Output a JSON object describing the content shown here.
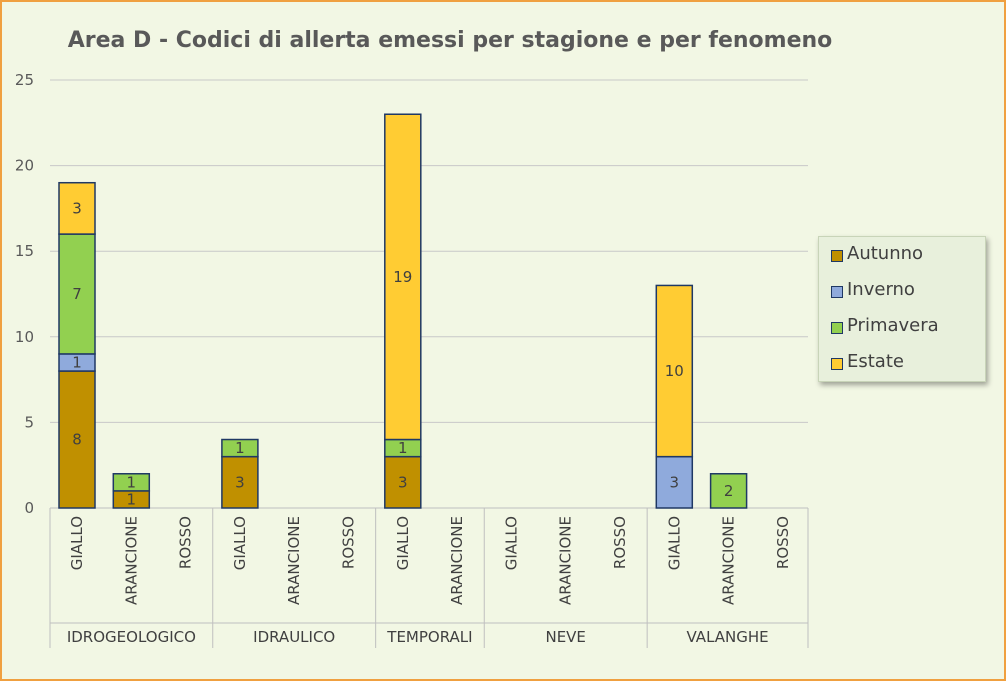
{
  "chart_data": {
    "type": "bar",
    "stacked": true,
    "title": "Area D - Codici di allerta emessi per stagione e per fenomeno",
    "ylim": [
      0,
      25
    ],
    "yticks": [
      0,
      5,
      10,
      15,
      20,
      25
    ],
    "grid": true,
    "legend_position": "right",
    "groups": [
      "IDROGEOLOGICO",
      "IDRAULICO",
      "TEMPORALI",
      "NEVE",
      "VALANGHE"
    ],
    "categories": [
      {
        "group": "IDROGEOLOGICO",
        "label": "GIALLO"
      },
      {
        "group": "IDROGEOLOGICO",
        "label": "ARANCIONE"
      },
      {
        "group": "IDROGEOLOGICO",
        "label": "ROSSO"
      },
      {
        "group": "IDRAULICO",
        "label": "GIALLO"
      },
      {
        "group": "IDRAULICO",
        "label": "ARANCIONE"
      },
      {
        "group": "IDRAULICO",
        "label": "ROSSO"
      },
      {
        "group": "TEMPORALI",
        "label": "GIALLO"
      },
      {
        "group": "TEMPORALI",
        "label": "ARANCIONE"
      },
      {
        "group": "NEVE",
        "label": "GIALLO"
      },
      {
        "group": "NEVE",
        "label": "ARANCIONE"
      },
      {
        "group": "NEVE",
        "label": "ROSSO"
      },
      {
        "group": "VALANGHE",
        "label": "GIALLO"
      },
      {
        "group": "VALANGHE",
        "label": "ARANCIONE"
      },
      {
        "group": "VALANGHE",
        "label": "ROSSO"
      }
    ],
    "series": [
      {
        "name": "Autunno",
        "color": "#c09000",
        "values": [
          8,
          1,
          0,
          3,
          0,
          0,
          3,
          0,
          0,
          0,
          0,
          0,
          0,
          0
        ]
      },
      {
        "name": "Inverno",
        "color": "#8faadc",
        "values": [
          1,
          0,
          0,
          0,
          0,
          0,
          0,
          0,
          0,
          0,
          0,
          3,
          0,
          0
        ]
      },
      {
        "name": "Primavera",
        "color": "#92d050",
        "values": [
          7,
          1,
          0,
          1,
          0,
          0,
          1,
          0,
          0,
          0,
          0,
          0,
          2,
          0
        ]
      },
      {
        "name": "Estate",
        "color": "#ffcc33",
        "values": [
          3,
          0,
          0,
          0,
          0,
          0,
          19,
          0,
          0,
          0,
          0,
          10,
          0,
          0
        ]
      }
    ]
  }
}
